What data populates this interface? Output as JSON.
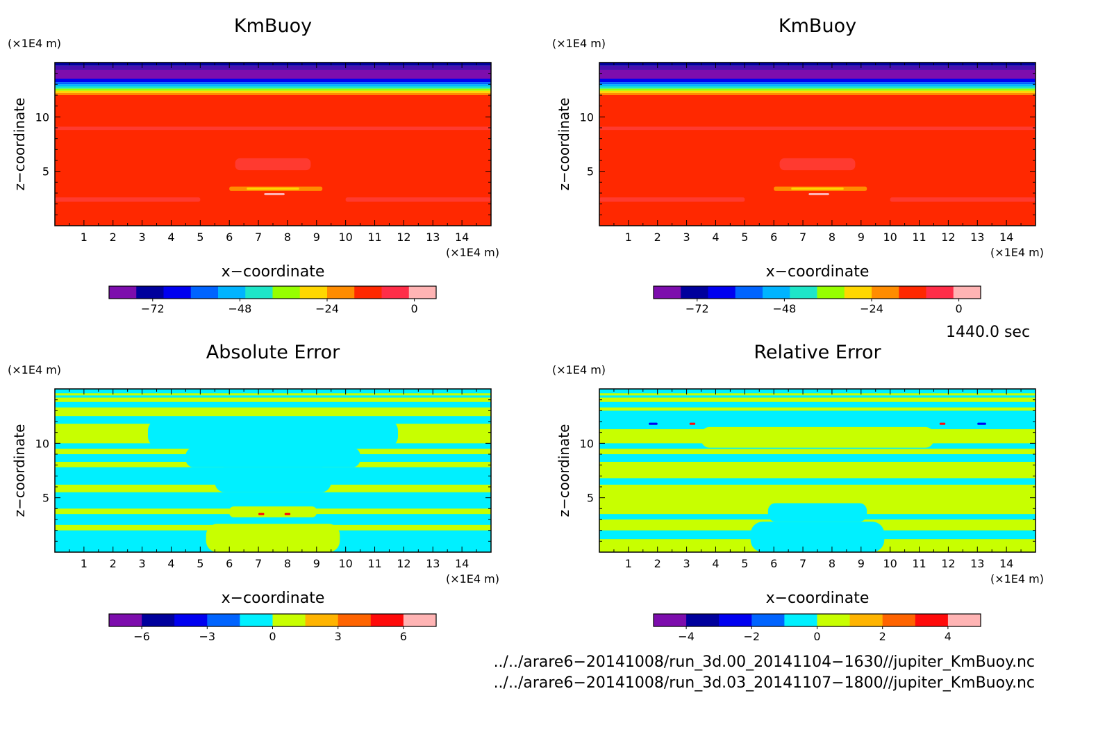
{
  "chart_data": [
    {
      "type": "heatmap",
      "title": "KmBuoy",
      "xlabel": "x−coordinate",
      "ylabel": "z−coordinate",
      "x_unit": "(×1E4 m)",
      "y_unit": "(×1E4 m)",
      "xlim": [
        0,
        15
      ],
      "ylim": [
        0,
        15
      ],
      "x_ticks": [
        "1",
        "2",
        "3",
        "4",
        "5",
        "6",
        "7",
        "8",
        "9",
        "10",
        "11",
        "12",
        "13",
        "14"
      ],
      "y_ticks": [
        "5",
        "10"
      ],
      "colorbar": {
        "colors": [
          "#7d0dad",
          "#00009c",
          "#0000f0",
          "#0064ff",
          "#00b4ff",
          "#1ee6c8",
          "#96ff00",
          "#ffd700",
          "#ff8c00",
          "#ff2800",
          "#ff2d48",
          "#ffb4b4"
        ],
        "tick_labels": [
          "−72",
          "−48",
          "−24",
          "0"
        ],
        "tick_values": [
          -72,
          -48,
          -24,
          0
        ],
        "range": [
          -84,
          6
        ]
      },
      "bands": [
        {
          "z0": 14.7,
          "z1": 15.0,
          "color": "#00009c"
        },
        {
          "z0": 14.3,
          "z1": 14.7,
          "color": "#4a0fb0"
        },
        {
          "z0": 13.5,
          "z1": 14.3,
          "color": "#7d0dad"
        },
        {
          "z0": 13.2,
          "z1": 13.5,
          "color": "#0000f0"
        },
        {
          "z0": 13.0,
          "z1": 13.2,
          "color": "#0064ff"
        },
        {
          "z0": 12.8,
          "z1": 13.0,
          "color": "#00b4ff"
        },
        {
          "z0": 12.6,
          "z1": 12.8,
          "color": "#1ee6c8"
        },
        {
          "z0": 12.4,
          "z1": 12.6,
          "color": "#96ff00"
        },
        {
          "z0": 12.2,
          "z1": 12.4,
          "color": "#ffd700"
        },
        {
          "z0": 12.0,
          "z1": 12.2,
          "color": "#ff8c00"
        },
        {
          "z0": 0.0,
          "z1": 12.0,
          "color": "#ff2800"
        }
      ],
      "features": [
        {
          "x0": 0,
          "x1": 15,
          "z0": 8.8,
          "z1": 9.1,
          "color": "#ff3a30"
        },
        {
          "x0": 6.2,
          "x1": 8.8,
          "z0": 5.1,
          "z1": 6.2,
          "color": "#ff3a30"
        },
        {
          "x0": 6.0,
          "x1": 9.2,
          "z0": 3.2,
          "z1": 3.6,
          "color": "#ff8c00"
        },
        {
          "x0": 6.6,
          "x1": 8.4,
          "z0": 3.3,
          "z1": 3.5,
          "color": "#ffd700"
        },
        {
          "x0": 7.2,
          "x1": 7.9,
          "z0": 2.8,
          "z1": 3.0,
          "color": "#ffb4b4"
        },
        {
          "x0": 0,
          "x1": 5,
          "z0": 2.2,
          "z1": 2.6,
          "color": "#ff3a30"
        },
        {
          "x0": 10,
          "x1": 15,
          "z0": 2.2,
          "z1": 2.6,
          "color": "#ff3a30"
        }
      ]
    },
    {
      "type": "heatmap",
      "title": "KmBuoy",
      "xlabel": "x−coordinate",
      "ylabel": "z−coordinate",
      "x_unit": "(×1E4 m)",
      "y_unit": "(×1E4 m)",
      "xlim": [
        0,
        15
      ],
      "ylim": [
        0,
        15
      ],
      "x_ticks": [
        "1",
        "2",
        "3",
        "4",
        "5",
        "6",
        "7",
        "8",
        "9",
        "10",
        "11",
        "12",
        "13",
        "14"
      ],
      "y_ticks": [
        "5",
        "10"
      ],
      "colorbar": {
        "colors": [
          "#7d0dad",
          "#00009c",
          "#0000f0",
          "#0064ff",
          "#00b4ff",
          "#1ee6c8",
          "#96ff00",
          "#ffd700",
          "#ff8c00",
          "#ff2800",
          "#ff2d48",
          "#ffb4b4"
        ],
        "tick_labels": [
          "−72",
          "−48",
          "−24",
          "0"
        ],
        "tick_values": [
          -72,
          -48,
          -24,
          0
        ],
        "range": [
          -84,
          6
        ]
      },
      "bands": [
        {
          "z0": 14.7,
          "z1": 15.0,
          "color": "#00009c"
        },
        {
          "z0": 14.3,
          "z1": 14.7,
          "color": "#4a0fb0"
        },
        {
          "z0": 13.5,
          "z1": 14.3,
          "color": "#7d0dad"
        },
        {
          "z0": 13.2,
          "z1": 13.5,
          "color": "#0000f0"
        },
        {
          "z0": 13.0,
          "z1": 13.2,
          "color": "#0064ff"
        },
        {
          "z0": 12.8,
          "z1": 13.0,
          "color": "#00b4ff"
        },
        {
          "z0": 12.6,
          "z1": 12.8,
          "color": "#1ee6c8"
        },
        {
          "z0": 12.4,
          "z1": 12.6,
          "color": "#96ff00"
        },
        {
          "z0": 12.2,
          "z1": 12.4,
          "color": "#ffd700"
        },
        {
          "z0": 12.0,
          "z1": 12.2,
          "color": "#ff8c00"
        },
        {
          "z0": 0.0,
          "z1": 12.0,
          "color": "#ff2800"
        }
      ],
      "features": [
        {
          "x0": 0,
          "x1": 15,
          "z0": 8.8,
          "z1": 9.1,
          "color": "#ff3a30"
        },
        {
          "x0": 6.2,
          "x1": 8.8,
          "z0": 5.1,
          "z1": 6.2,
          "color": "#ff3a30"
        },
        {
          "x0": 6.0,
          "x1": 9.2,
          "z0": 3.2,
          "z1": 3.6,
          "color": "#ff8c00"
        },
        {
          "x0": 6.6,
          "x1": 8.4,
          "z0": 3.3,
          "z1": 3.5,
          "color": "#ffd700"
        },
        {
          "x0": 7.2,
          "x1": 7.9,
          "z0": 2.8,
          "z1": 3.0,
          "color": "#ffb4b4"
        },
        {
          "x0": 0,
          "x1": 5,
          "z0": 2.2,
          "z1": 2.6,
          "color": "#ff3a30"
        },
        {
          "x0": 10,
          "x1": 15,
          "z0": 2.2,
          "z1": 2.6,
          "color": "#ff3a30"
        }
      ]
    },
    {
      "type": "heatmap",
      "title": "Absolute Error",
      "xlabel": "x−coordinate",
      "ylabel": "z−coordinate",
      "x_unit": "(×1E4 m)",
      "y_unit": "(×1E4 m)",
      "xlim": [
        0,
        15
      ],
      "ylim": [
        0,
        15
      ],
      "x_ticks": [
        "1",
        "2",
        "3",
        "4",
        "5",
        "6",
        "7",
        "8",
        "9",
        "10",
        "11",
        "12",
        "13",
        "14"
      ],
      "y_ticks": [
        "5",
        "10"
      ],
      "colorbar": {
        "colors": [
          "#7d0dad",
          "#00009c",
          "#0000f0",
          "#0064ff",
          "#00f0ff",
          "#c8ff00",
          "#ffb400",
          "#ff6400",
          "#ff0a0a",
          "#ffb4b4"
        ],
        "tick_labels": [
          "−6",
          "−3",
          "0",
          "3",
          "6"
        ],
        "tick_values": [
          -6,
          -3,
          0,
          3,
          6
        ],
        "range": [
          -7.5,
          7.5
        ]
      },
      "base_color": "#c8ff00",
      "bands": [
        {
          "z0": 14.6,
          "z1": 15.0,
          "color": "#00f0ff"
        },
        {
          "z0": 14.2,
          "z1": 14.4,
          "color": "#00f0ff"
        },
        {
          "z0": 13.3,
          "z1": 13.8,
          "color": "#00f0ff"
        },
        {
          "z0": 11.8,
          "z1": 12.5,
          "color": "#00f0ff"
        },
        {
          "z0": 9.5,
          "z1": 10.0,
          "color": "#00f0ff"
        },
        {
          "z0": 8.3,
          "z1": 9.0,
          "color": "#00f0ff"
        },
        {
          "z0": 6.2,
          "z1": 7.8,
          "color": "#00f0ff"
        },
        {
          "z0": 4.0,
          "z1": 5.5,
          "color": "#00f0ff"
        },
        {
          "z0": 2.5,
          "z1": 3.5,
          "color": "#00f0ff"
        },
        {
          "z0": 0.0,
          "z1": 2.0,
          "color": "#00f0ff"
        }
      ],
      "features": [
        {
          "x0": 3.2,
          "x1": 11.8,
          "z0": 9.6,
          "z1": 12.2,
          "color": "#00f0ff"
        },
        {
          "x0": 4.5,
          "x1": 10.5,
          "z0": 7.8,
          "z1": 9.6,
          "color": "#00f0ff"
        },
        {
          "x0": 5.5,
          "x1": 9.5,
          "z0": 5.5,
          "z1": 7.8,
          "color": "#00f0ff"
        },
        {
          "x0": 5.2,
          "x1": 9.8,
          "z0": 0.0,
          "z1": 2.6,
          "color": "#c8ff00"
        },
        {
          "x0": 6.0,
          "x1": 9.0,
          "z0": 3.2,
          "z1": 4.2,
          "color": "#c8ff00"
        },
        {
          "x0": 7.0,
          "x1": 7.2,
          "z0": 3.4,
          "z1": 3.6,
          "color": "#ff0a0a"
        },
        {
          "x0": 7.9,
          "x1": 8.1,
          "z0": 3.4,
          "z1": 3.6,
          "color": "#ff0a0a"
        }
      ]
    },
    {
      "type": "heatmap",
      "title": "Relative Error",
      "xlabel": "x−coordinate",
      "ylabel": "z−coordinate",
      "x_unit": "(×1E4 m)",
      "y_unit": "(×1E4 m)",
      "xlim": [
        0,
        15
      ],
      "ylim": [
        0,
        15
      ],
      "x_ticks": [
        "1",
        "2",
        "3",
        "4",
        "5",
        "6",
        "7",
        "8",
        "9",
        "10",
        "11",
        "12",
        "13",
        "14"
      ],
      "y_ticks": [
        "5",
        "10"
      ],
      "colorbar": {
        "colors": [
          "#7d0dad",
          "#00009c",
          "#0000f0",
          "#0064ff",
          "#00f0ff",
          "#c8ff00",
          "#ffb400",
          "#ff6400",
          "#ff0a0a",
          "#ffb4b4"
        ],
        "tick_labels": [
          "−4",
          "−2",
          "0",
          "2",
          "4"
        ],
        "tick_values": [
          -4,
          -2,
          0,
          2,
          4
        ],
        "range": [
          -5,
          5
        ]
      },
      "base_color": "#c8ff00",
      "bands": [
        {
          "z0": 14.6,
          "z1": 15.0,
          "color": "#00f0ff"
        },
        {
          "z0": 14.2,
          "z1": 14.4,
          "color": "#00f0ff"
        },
        {
          "z0": 13.3,
          "z1": 13.8,
          "color": "#00f0ff"
        },
        {
          "z0": 11.3,
          "z1": 13.0,
          "color": "#00f0ff"
        },
        {
          "z0": 9.5,
          "z1": 10.0,
          "color": "#00f0ff"
        },
        {
          "z0": 8.3,
          "z1": 9.0,
          "color": "#00f0ff"
        },
        {
          "z0": 6.2,
          "z1": 6.8,
          "color": "#00f0ff"
        },
        {
          "z0": 3.0,
          "z1": 3.5,
          "color": "#00f0ff"
        },
        {
          "z0": 1.2,
          "z1": 2.0,
          "color": "#00f0ff"
        }
      ],
      "features": [
        {
          "x0": 3.5,
          "x1": 11.5,
          "z0": 9.6,
          "z1": 11.5,
          "color": "#c8ff00"
        },
        {
          "x0": 5.2,
          "x1": 9.8,
          "z0": 0.0,
          "z1": 2.8,
          "color": "#00f0ff"
        },
        {
          "x0": 5.8,
          "x1": 9.2,
          "z0": 2.8,
          "z1": 4.5,
          "color": "#00f0ff"
        },
        {
          "x0": 1.7,
          "x1": 2.0,
          "z0": 11.7,
          "z1": 11.9,
          "color": "#0000f0"
        },
        {
          "x0": 3.1,
          "x1": 3.3,
          "z0": 11.7,
          "z1": 11.9,
          "color": "#ff0a0a"
        },
        {
          "x0": 11.7,
          "x1": 11.9,
          "z0": 11.7,
          "z1": 11.9,
          "color": "#ff0a0a"
        },
        {
          "x0": 13.0,
          "x1": 13.3,
          "z0": 11.7,
          "z1": 11.9,
          "color": "#0000f0"
        }
      ]
    }
  ],
  "footer": {
    "time_label": "1440.0 sec",
    "file_1": "../../arare6−20141008/run_3d.00_20141104−1630//jupiter_KmBuoy.nc",
    "file_2": "../../arare6−20141008/run_3d.03_20141107−1800//jupiter_KmBuoy.nc"
  }
}
